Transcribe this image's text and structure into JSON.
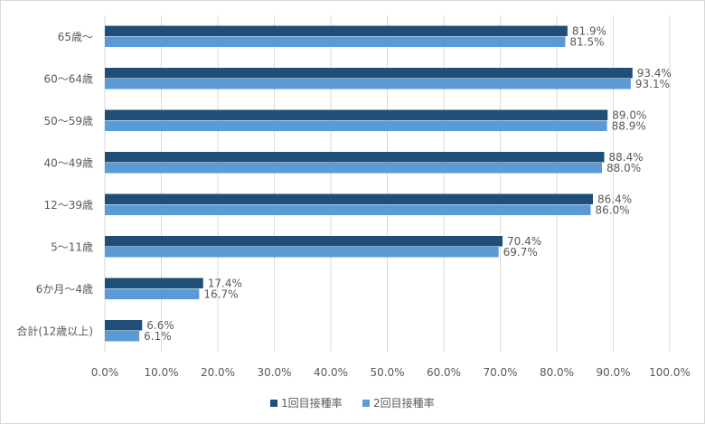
{
  "chart_data": {
    "type": "bar",
    "orientation": "horizontal",
    "categories": [
      "65歳～",
      "60～64歳",
      "50～59歳",
      "40～49歳",
      "12～39歳",
      "5～11歳",
      "6か月～4歳",
      "合計(12歳以上)"
    ],
    "series": [
      {
        "name": "1回目接種率",
        "color": "#1f4e79",
        "values": [
          81.9,
          93.4,
          89.0,
          88.4,
          86.4,
          70.4,
          17.4,
          6.6
        ],
        "labels": [
          "81.9%",
          "93.4%",
          "89.0%",
          "88.4%",
          "86.4%",
          "70.4%",
          "17.4%",
          "6.6%"
        ]
      },
      {
        "name": "2回目接種率",
        "color": "#5b9bd5",
        "values": [
          81.5,
          93.1,
          88.9,
          88.0,
          86.0,
          69.7,
          16.7,
          6.1
        ],
        "labels": [
          "81.5%",
          "93.1%",
          "88.9%",
          "88.0%",
          "86.0%",
          "69.7%",
          "16.7%",
          "6.1%"
        ]
      }
    ],
    "xlim": [
      0,
      100
    ],
    "xticks": [
      "0.0%",
      "10.0%",
      "20.0%",
      "30.0%",
      "40.0%",
      "50.0%",
      "60.0%",
      "70.0%",
      "80.0%",
      "90.0%",
      "100.0%"
    ],
    "grid": true,
    "legend_position": "bottom",
    "title": "",
    "xlabel": "",
    "ylabel": ""
  }
}
